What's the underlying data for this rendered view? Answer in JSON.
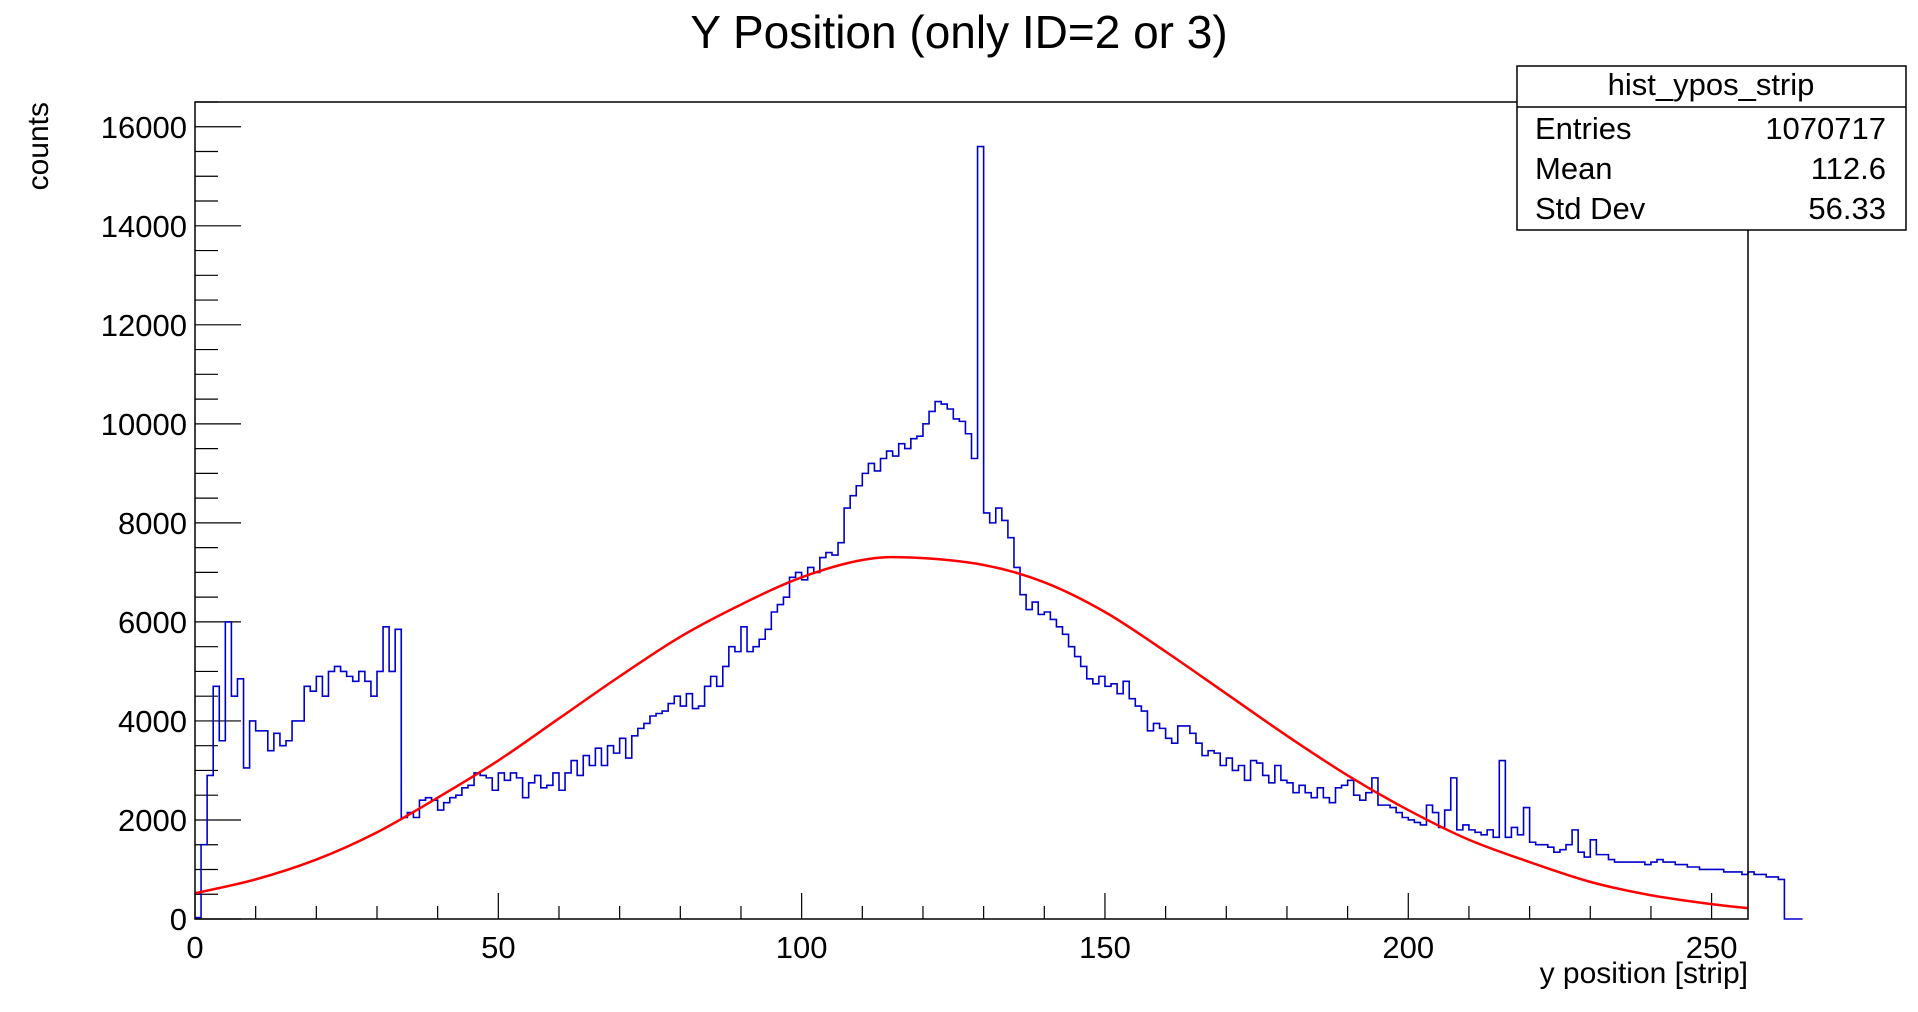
{
  "chart_data": {
    "type": "histogram",
    "title": "Y Position (only ID=2 or 3)",
    "xlabel": "y position [strip]",
    "ylabel": "counts",
    "xlim": [
      0,
      256
    ],
    "ylim": [
      0,
      16500
    ],
    "x_ticks": [
      0,
      50,
      100,
      150,
      200,
      250
    ],
    "y_ticks": [
      0,
      2000,
      4000,
      6000,
      8000,
      10000,
      12000,
      14000,
      16000
    ],
    "grid": false,
    "colors": {
      "histogram": "#0000cc",
      "fit": "#ff0000"
    },
    "stats_box": {
      "name": "hist_ypos_strip",
      "rows": [
        {
          "label": "Entries",
          "value": "1070717"
        },
        {
          "label": "Mean",
          "value": "112.6"
        },
        {
          "label": "Std Dev",
          "value": "56.33"
        }
      ]
    },
    "series": [
      {
        "kind": "histogram",
        "bin_width": 1,
        "values": [
          30,
          1500,
          2900,
          4700,
          3600,
          6000,
          4500,
          4850,
          3050,
          4000,
          3800,
          3800,
          3400,
          3750,
          3500,
          3600,
          4000,
          4000,
          4700,
          4600,
          4900,
          4500,
          5000,
          5100,
          5000,
          4900,
          4800,
          5000,
          4800,
          4500,
          5000,
          5900,
          5000,
          5850,
          2050,
          2150,
          2050,
          2400,
          2450,
          2400,
          2200,
          2350,
          2450,
          2500,
          2650,
          2700,
          2950,
          2900,
          2850,
          2600,
          2950,
          2800,
          2950,
          2850,
          2450,
          2750,
          2900,
          2650,
          2700,
          2950,
          2600,
          2950,
          3200,
          2900,
          3300,
          3100,
          3450,
          3100,
          3500,
          3350,
          3650,
          3250,
          3700,
          3850,
          3950,
          4100,
          4150,
          4200,
          4350,
          4500,
          4300,
          4550,
          4250,
          4300,
          4700,
          4900,
          4700,
          5100,
          5500,
          5400,
          5900,
          5400,
          5500,
          5650,
          5850,
          6200,
          6350,
          6500,
          6900,
          7000,
          6850,
          7100,
          7000,
          7300,
          7400,
          7350,
          7600,
          8300,
          8550,
          8750,
          9000,
          9200,
          9050,
          9300,
          9450,
          9350,
          9600,
          9500,
          9700,
          9750,
          10000,
          10250,
          10450,
          10400,
          10300,
          10100,
          10050,
          9800,
          9300,
          15600,
          8200,
          8000,
          8300,
          8050,
          7700,
          7100,
          6550,
          6250,
          6400,
          6150,
          6200,
          6050,
          5900,
          5750,
          5500,
          5300,
          5100,
          4850,
          4750,
          4900,
          4700,
          4750,
          4550,
          4800,
          4450,
          4300,
          4200,
          3800,
          3950,
          3850,
          3650,
          3550,
          3900,
          3900,
          3750,
          3550,
          3300,
          3400,
          3350,
          3100,
          3250,
          3000,
          3100,
          2800,
          3200,
          3150,
          2900,
          2750,
          3100,
          2800,
          2750,
          2550,
          2700,
          2550,
          2450,
          2650,
          2450,
          2350,
          2650,
          2700,
          2800,
          2500,
          2400,
          2550,
          2850,
          2300,
          2300,
          2250,
          2150,
          2050,
          2000,
          1950,
          1900,
          2300,
          2150,
          1850,
          2200,
          2850,
          1800,
          1900,
          1800,
          1750,
          1700,
          1800,
          1650,
          3200,
          1650,
          1850,
          1700,
          2250,
          1550,
          1500,
          1500,
          1450,
          1350,
          1400,
          1500,
          1800,
          1350,
          1250,
          1600,
          1300,
          1300,
          1200,
          1150,
          1150,
          1150,
          1150,
          1150,
          1100,
          1150,
          1200,
          1150,
          1150,
          1100,
          1100,
          1050,
          1050,
          1000,
          1000,
          1000,
          1000,
          950,
          950,
          950,
          900,
          950,
          900,
          900,
          850,
          850,
          800,
          0,
          0,
          0
        ]
      },
      {
        "kind": "fit",
        "x": [
          0,
          10,
          20,
          30,
          40,
          50,
          60,
          70,
          80,
          90,
          100,
          110,
          118,
          130,
          140,
          150,
          160,
          170,
          180,
          190,
          200,
          210,
          220,
          230,
          240,
          250,
          256
        ],
        "y": [
          520,
          800,
          1200,
          1750,
          2450,
          3200,
          4050,
          4900,
          5700,
          6350,
          6900,
          7250,
          7300,
          7150,
          6800,
          6200,
          5400,
          4550,
          3700,
          2900,
          2200,
          1600,
          1150,
          750,
          480,
          300,
          220
        ]
      }
    ]
  }
}
